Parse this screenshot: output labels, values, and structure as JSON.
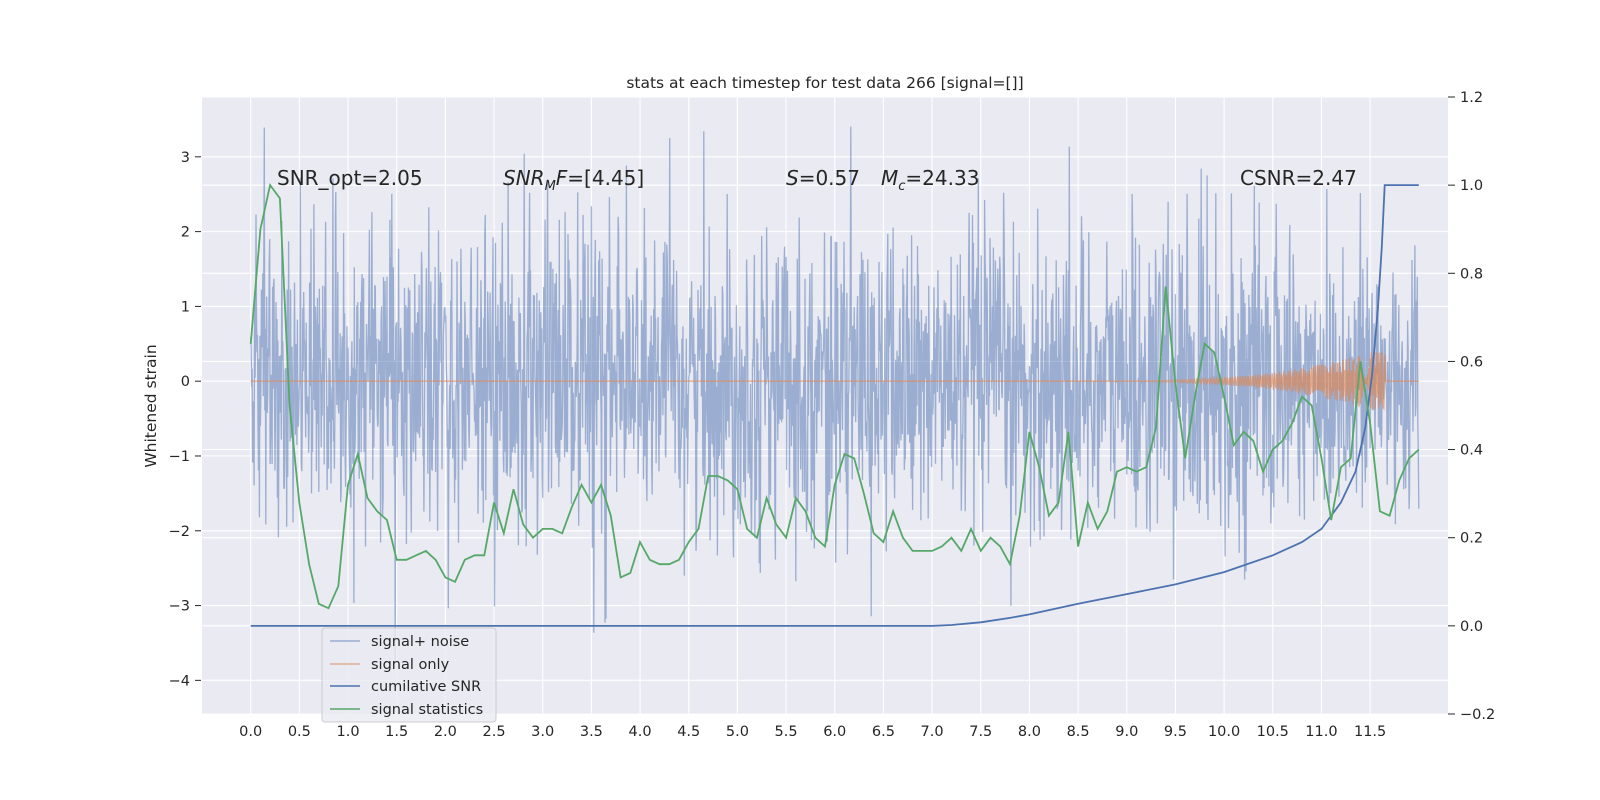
{
  "chart_data": {
    "type": "line",
    "title": "stats at each timestep for test data 266 [signal=[]]",
    "xlabel": "",
    "ylabel": "Whitened strain",
    "y2label": "",
    "xlim": [
      -0.5,
      12.3
    ],
    "ylim": [
      -4.45,
      3.8
    ],
    "y2lim": [
      -0.2,
      1.2
    ],
    "x_ticks": [
      "0.0",
      "0.5",
      "1.0",
      "1.5",
      "2.0",
      "2.5",
      "3.0",
      "3.5",
      "4.0",
      "4.5",
      "5.0",
      "5.5",
      "6.0",
      "6.5",
      "7.0",
      "7.5",
      "8.0",
      "8.5",
      "9.0",
      "9.5",
      "10.0",
      "10.5",
      "11.0",
      "11.5"
    ],
    "y_ticks": [
      "3",
      "2",
      "1",
      "0",
      "−1",
      "−2",
      "−3",
      "−4"
    ],
    "y2_ticks": [
      "1.2",
      "1.0",
      "0.8",
      "0.6",
      "0.4",
      "0.2",
      "0.0",
      "−0.2"
    ],
    "grid": true,
    "legend_position": "lower-left",
    "annotations": {
      "snr_opt": "SNR_opt=2.05",
      "snr_mf_italic": "SNR",
      "snr_mf_sub": "M",
      "snr_mf_italic2": "F",
      "snr_mf_rest": "=[4.45]",
      "s_italic": "S",
      "s_rest": "=0.57",
      "mc_italic": "M",
      "mc_sub": "c",
      "mc_rest": "=24.33",
      "csnr": "CSNR=2.47"
    },
    "series": [
      {
        "name": "signal+ noise",
        "axis": "left",
        "color": "#4c72b0",
        "description_values": "dense white-noise trace, x 0.0–12.0, roughly ±2 with spikes to 3.4 and -4.1"
      },
      {
        "name": "signal only",
        "axis": "left",
        "color": "#dd8452",
        "description_values": "flat at 0 until ~9.5, growing chirp reaching about ±0.45 near 11.65, then 0"
      },
      {
        "name": "cumilative SNR",
        "axis": "right",
        "color": "#4c72b0",
        "points": [
          [
            0,
            0
          ],
          [
            7.0,
            0
          ],
          [
            7.2,
            0.002
          ],
          [
            7.5,
            0.008
          ],
          [
            7.8,
            0.018
          ],
          [
            8.0,
            0.026
          ],
          [
            8.5,
            0.05
          ],
          [
            9.0,
            0.072
          ],
          [
            9.5,
            0.094
          ],
          [
            10.0,
            0.122
          ],
          [
            10.5,
            0.16
          ],
          [
            10.8,
            0.19
          ],
          [
            11.0,
            0.22
          ],
          [
            11.2,
            0.28
          ],
          [
            11.35,
            0.35
          ],
          [
            11.45,
            0.45
          ],
          [
            11.52,
            0.57
          ],
          [
            11.58,
            0.72
          ],
          [
            11.62,
            0.86
          ],
          [
            11.65,
            1.0
          ],
          [
            12.0,
            1.0
          ]
        ]
      },
      {
        "name": "signal statistics",
        "axis": "right",
        "color": "#55a868",
        "x": [
          0,
          0.1,
          0.2,
          0.3,
          0.4,
          0.5,
          0.6,
          0.7,
          0.8,
          0.9,
          1.0,
          1.1,
          1.2,
          1.3,
          1.4,
          1.5,
          1.6,
          1.7,
          1.8,
          1.9,
          2.0,
          2.1,
          2.2,
          2.3,
          2.4,
          2.5,
          2.6,
          2.7,
          2.8,
          2.9,
          3.0,
          3.1,
          3.2,
          3.3,
          3.4,
          3.5,
          3.6,
          3.7,
          3.8,
          3.9,
          4.0,
          4.1,
          4.2,
          4.3,
          4.4,
          4.5,
          4.6,
          4.7,
          4.8,
          4.9,
          5.0,
          5.1,
          5.2,
          5.3,
          5.4,
          5.5,
          5.6,
          5.7,
          5.8,
          5.9,
          6.0,
          6.1,
          6.2,
          6.3,
          6.4,
          6.5,
          6.6,
          6.7,
          6.8,
          6.9,
          7.0,
          7.1,
          7.2,
          7.3,
          7.4,
          7.5,
          7.6,
          7.7,
          7.8,
          7.9,
          8.0,
          8.1,
          8.2,
          8.3,
          8.4,
          8.5,
          8.6,
          8.7,
          8.8,
          8.9,
          9.0,
          9.1,
          9.2,
          9.3,
          9.4,
          9.5,
          9.6,
          9.7,
          9.8,
          9.9,
          10.0,
          10.1,
          10.2,
          10.3,
          10.4,
          10.5,
          10.6,
          10.7,
          10.8,
          10.9,
          11.0,
          11.1,
          11.2,
          11.3,
          11.4,
          11.5,
          11.6,
          11.7,
          11.8,
          11.9,
          12.0
        ],
        "values": [
          0.64,
          0.9,
          1.0,
          0.97,
          0.5,
          0.28,
          0.14,
          0.05,
          0.04,
          0.09,
          0.32,
          0.39,
          0.29,
          0.26,
          0.24,
          0.15,
          0.15,
          0.16,
          0.17,
          0.15,
          0.11,
          0.1,
          0.15,
          0.16,
          0.16,
          0.28,
          0.21,
          0.31,
          0.23,
          0.2,
          0.22,
          0.22,
          0.21,
          0.27,
          0.32,
          0.28,
          0.32,
          0.25,
          0.11,
          0.12,
          0.19,
          0.15,
          0.14,
          0.14,
          0.15,
          0.19,
          0.22,
          0.34,
          0.34,
          0.33,
          0.31,
          0.22,
          0.2,
          0.29,
          0.23,
          0.2,
          0.29,
          0.26,
          0.2,
          0.18,
          0.32,
          0.39,
          0.38,
          0.3,
          0.21,
          0.19,
          0.26,
          0.2,
          0.17,
          0.17,
          0.17,
          0.18,
          0.2,
          0.17,
          0.22,
          0.17,
          0.2,
          0.18,
          0.14,
          0.25,
          0.44,
          0.36,
          0.25,
          0.28,
          0.44,
          0.18,
          0.28,
          0.22,
          0.26,
          0.35,
          0.36,
          0.35,
          0.36,
          0.45,
          0.77,
          0.55,
          0.38,
          0.52,
          0.64,
          0.62,
          0.52,
          0.41,
          0.44,
          0.42,
          0.35,
          0.4,
          0.42,
          0.46,
          0.52,
          0.5,
          0.38,
          0.24,
          0.36,
          0.38,
          0.6,
          0.46,
          0.26,
          0.25,
          0.33,
          0.38,
          0.4
        ]
      }
    ]
  }
}
